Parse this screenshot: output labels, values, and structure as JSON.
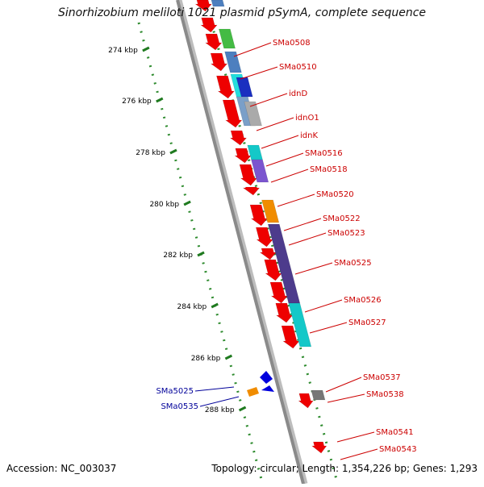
{
  "title": "Sinorhizobium meliloti 1021 plasmid pSymA, complete sequence",
  "footer": {
    "accession": "Accession: NC_003037",
    "summary": "Topology: circular; Length: 1,354,226 bp; Genes: 1,293"
  },
  "colors": {
    "backbone": "#8a8a8a",
    "forward_gene": "#ee0000",
    "label_red": "#cc0000",
    "label_blue": "#000099",
    "scale_dots": "#2e8b2e"
  },
  "scale_ticks": [
    "274 kbp",
    "276 kbp",
    "278 kbp",
    "280 kbp",
    "282 kbp",
    "284 kbp",
    "286 kbp",
    "288 kbp"
  ],
  "gene_labels": [
    {
      "text": "SMa0508",
      "color": "red"
    },
    {
      "text": "SMa0510",
      "color": "red"
    },
    {
      "text": "idnD",
      "color": "red"
    },
    {
      "text": "idnO1",
      "color": "red"
    },
    {
      "text": "idnK",
      "color": "red"
    },
    {
      "text": "SMa0516",
      "color": "red"
    },
    {
      "text": "SMa0518",
      "color": "red"
    },
    {
      "text": "SMa0520",
      "color": "red"
    },
    {
      "text": "SMa0522",
      "color": "red"
    },
    {
      "text": "SMa0523",
      "color": "red"
    },
    {
      "text": "SMa0525",
      "color": "red"
    },
    {
      "text": "SMa0526",
      "color": "red"
    },
    {
      "text": "SMa0527",
      "color": "red"
    },
    {
      "text": "SMa0537",
      "color": "red"
    },
    {
      "text": "SMa0538",
      "color": "red"
    },
    {
      "text": "SMa0541",
      "color": "red"
    },
    {
      "text": "SMa0543",
      "color": "red"
    },
    {
      "text": "SMa5025",
      "color": "blue"
    },
    {
      "text": "SMa0535",
      "color": "blue"
    }
  ]
}
